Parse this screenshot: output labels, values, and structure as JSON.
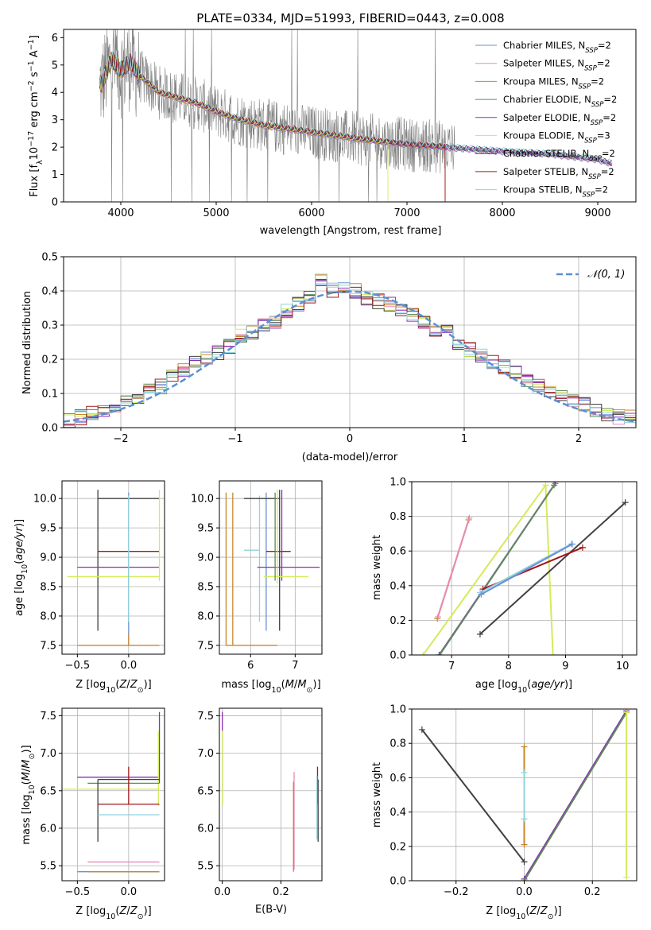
{
  "colors": {
    "Chabrier MILES": "#6b8fd6",
    "Salpeter MILES": "#e88ab8",
    "Kroupa MILES": "#c9862a",
    "Chabrier ELODIE": "#5e8a5e",
    "Salpeter ELODIE": "#8a2fb8",
    "Kroupa ELODIE": "#d6ea5a",
    "Chabrier STELIB": "#404040",
    "Salpeter STELIB": "#a01818",
    "Kroupa STELIB": "#8fd3dd",
    "data": "#7f7f7f",
    "normal": "#5b8fd6",
    "orange": "#e8773a",
    "grid": "#b0b0b0"
  },
  "chart_data": [
    {
      "id": "spectrum",
      "type": "line",
      "title": "PLATE=0334, MJD=51993, FIBERID=0443, z=0.008",
      "xlabel": "wavelength [Angstrom, rest frame]",
      "ylabel": "Flux [f_λ 10^-17 erg cm^-2 s^-1 A^-1]",
      "xlim": [
        3400,
        9400
      ],
      "ylim": [
        0,
        6.3
      ],
      "xticks": [
        4000,
        5000,
        6000,
        7000,
        8000,
        9000
      ],
      "yticks": [
        0,
        1,
        2,
        3,
        4,
        5,
        6
      ],
      "grid": false,
      "legend": "top-right",
      "legend_entries": [
        [
          "Chabrier MILES, N",
          "SSP",
          "=2"
        ],
        [
          "Salpeter MILES, N",
          "SSP",
          "=2"
        ],
        [
          "Kroupa MILES, N",
          "SSP",
          "=2"
        ],
        [
          "Chabrier ELODIE, N",
          "SSP",
          "=2"
        ],
        [
          "Salpeter ELODIE, N",
          "SSP",
          "=2"
        ],
        [
          "Kroupa ELODIE, N",
          "SSP",
          "=3"
        ],
        [
          "Chabrier STELIB, N",
          "SSP",
          "=2"
        ],
        [
          "Salpeter STELIB, N",
          "SSP",
          "=2"
        ],
        [
          "Kroupa STELIB, N",
          "SSP",
          "=2"
        ]
      ],
      "model_continuum": {
        "x": [
          3800,
          3900,
          4000,
          4100,
          4200,
          4400,
          4600,
          4800,
          5000,
          5200,
          5500,
          6000,
          6500,
          7000,
          7400,
          8000,
          8500,
          9000,
          9150
        ],
        "y": [
          4.3,
          5.2,
          4.8,
          5.1,
          4.6,
          4.0,
          3.8,
          3.6,
          3.3,
          3.05,
          2.8,
          2.55,
          2.3,
          2.1,
          2.0,
          1.85,
          1.75,
          1.55,
          1.4
        ]
      },
      "model_cutoffs": {
        "Kroupa ELODIE": 6800,
        "Salpeter STELIB": 7400,
        "Kroupa MILES": 7400
      }
    },
    {
      "id": "residuals",
      "type": "line",
      "xlabel": "(data-model)/error",
      "ylabel": "Normed distribution",
      "xlim": [
        -2.5,
        2.5
      ],
      "ylim": [
        0,
        0.5
      ],
      "xticks": [
        -2,
        -1,
        0,
        1,
        2
      ],
      "yticks": [
        0.0,
        0.1,
        0.2,
        0.3,
        0.4,
        0.5
      ],
      "grid": true,
      "legend": "top-right",
      "legend_label": "𝒩(0, 1)",
      "bin_centers": [
        -2.45,
        -2.35,
        -2.25,
        -2.15,
        -2.05,
        -1.95,
        -1.85,
        -1.75,
        -1.65,
        -1.55,
        -1.45,
        -1.35,
        -1.25,
        -1.15,
        -1.05,
        -0.95,
        -0.85,
        -0.75,
        -0.65,
        -0.55,
        -0.45,
        -0.35,
        -0.25,
        -0.15,
        -0.05,
        0.05,
        0.15,
        0.25,
        0.35,
        0.45,
        0.55,
        0.65,
        0.75,
        0.85,
        0.95,
        1.05,
        1.15,
        1.25,
        1.35,
        1.45,
        1.55,
        1.65,
        1.75,
        1.85,
        1.95,
        2.05,
        2.15,
        2.25,
        2.35,
        2.45
      ],
      "hist_values": [
        0.02,
        0.03,
        0.04,
        0.05,
        0.06,
        0.08,
        0.09,
        0.11,
        0.12,
        0.15,
        0.17,
        0.19,
        0.2,
        0.22,
        0.24,
        0.27,
        0.28,
        0.3,
        0.31,
        0.34,
        0.36,
        0.38,
        0.43,
        0.4,
        0.41,
        0.4,
        0.38,
        0.37,
        0.36,
        0.35,
        0.33,
        0.31,
        0.29,
        0.28,
        0.25,
        0.23,
        0.21,
        0.19,
        0.18,
        0.16,
        0.14,
        0.12,
        0.1,
        0.09,
        0.08,
        0.07,
        0.05,
        0.04,
        0.03,
        0.03
      ]
    },
    {
      "id": "age_vs_Z",
      "type": "scatter",
      "xlabel": "Z [log10(Z/Z⊙)]",
      "ylabel": "age [log10(age/yr)]",
      "xlim": [
        -0.65,
        0.35
      ],
      "ylim": [
        7.35,
        10.3
      ],
      "xticks": [
        -0.5,
        0.0
      ],
      "yticks": [
        7.5,
        8.0,
        8.5,
        9.0,
        9.5,
        10.0
      ],
      "grid": true,
      "segments": [
        {
          "model": "Chabrier STELIB",
          "axis": "h",
          "at": 10.0,
          "from": -0.3,
          "to": 0.3
        },
        {
          "model": "Chabrier STELIB",
          "axis": "v",
          "at": -0.3,
          "from": 7.75,
          "to": 10.15
        },
        {
          "model": "Salpeter STELIB",
          "axis": "h",
          "at": 9.1,
          "from": -0.3,
          "to": 0.3
        },
        {
          "model": "Salpeter ELODIE",
          "axis": "h",
          "at": 8.83,
          "from": -0.5,
          "to": 0.3
        },
        {
          "model": "Kroupa ELODIE",
          "axis": "h",
          "at": 8.67,
          "from": -0.6,
          "to": 0.3
        },
        {
          "model": "Kroupa ELODIE",
          "axis": "v",
          "at": 0.3,
          "from": 8.6,
          "to": 10.15
        },
        {
          "model": "Chabrier MILES",
          "axis": "v",
          "at": 0.0,
          "from": 7.5,
          "to": 10.1
        },
        {
          "model": "Kroupa STELIB",
          "axis": "v",
          "at": 0.0,
          "from": 7.9,
          "to": 10.05
        },
        {
          "model": "Kroupa MILES",
          "axis": "h",
          "at": 7.5,
          "from": -0.5,
          "to": 0.3
        },
        {
          "model": "Kroupa MILES",
          "axis": "v",
          "at": 0.0,
          "from": 7.5,
          "to": 7.7
        }
      ]
    },
    {
      "id": "age_vs_mass",
      "type": "scatter",
      "xlabel": "mass [log10(M/M⊙)]",
      "ylabel": "",
      "xlim": [
        5.3,
        7.6
      ],
      "ylim": [
        7.35,
        10.3
      ],
      "xticks": [
        6,
        7
      ],
      "yticks": [
        7.5,
        8.0,
        8.5,
        9.0,
        9.5,
        10.0
      ],
      "grid": true,
      "segments": [
        {
          "model": "Kroupa MILES",
          "axis": "v",
          "at": 5.45,
          "from": 7.5,
          "to": 10.1
        },
        {
          "model": "Kroupa MILES",
          "axis": "h",
          "at": 7.5,
          "from": 5.45,
          "to": 6.6
        },
        {
          "model": "Kroupa MILES",
          "axis": "v",
          "at": 5.6,
          "from": 7.5,
          "to": 10.1
        },
        {
          "model": "Kroupa STELIB",
          "axis": "v",
          "at": 6.2,
          "from": 7.9,
          "to": 10.05
        },
        {
          "model": "Kroupa STELIB",
          "axis": "h",
          "at": 9.12,
          "from": 5.85,
          "to": 6.2
        },
        {
          "model": "Chabrier MILES",
          "axis": "v",
          "at": 6.35,
          "from": 7.75,
          "to": 10.1
        },
        {
          "model": "Chabrier STELIB",
          "axis": "h",
          "at": 10.0,
          "from": 5.85,
          "to": 6.65
        },
        {
          "model": "Chabrier STELIB",
          "axis": "v",
          "at": 6.65,
          "from": 7.75,
          "to": 10.15
        },
        {
          "model": "Salpeter STELIB",
          "axis": "h",
          "at": 9.1,
          "from": 6.35,
          "to": 6.9
        },
        {
          "model": "Salpeter ELODIE",
          "axis": "h",
          "at": 8.83,
          "from": 6.15,
          "to": 7.55
        },
        {
          "model": "Salpeter ELODIE",
          "axis": "v",
          "at": 6.7,
          "from": 8.6,
          "to": 10.15
        },
        {
          "model": "Kroupa ELODIE",
          "axis": "h",
          "at": 8.67,
          "from": 6.3,
          "to": 7.3
        },
        {
          "model": "Kroupa ELODIE",
          "axis": "v",
          "at": 6.6,
          "from": 8.55,
          "to": 10.15
        },
        {
          "model": "Chabrier ELODIE",
          "axis": "v",
          "at": 6.55,
          "from": 8.6,
          "to": 10.1
        }
      ]
    },
    {
      "id": "massweight_vs_age",
      "type": "line",
      "xlabel": "age [log10(age/yr)]",
      "ylabel": "mass weight",
      "xlim": [
        6.3,
        10.25
      ],
      "ylim": [
        0,
        1.0
      ],
      "xticks": [
        7,
        8,
        9,
        10
      ],
      "yticks": [
        0.0,
        0.2,
        0.4,
        0.6,
        0.8,
        1.0
      ],
      "grid": true,
      "series": [
        {
          "model": "Kroupa MILES",
          "x": [
            6.75,
            7.3
          ],
          "y": [
            0.21,
            0.78
          ]
        },
        {
          "model": "Salpeter MILES",
          "x": [
            6.76,
            7.31
          ],
          "y": [
            0.22,
            0.79
          ]
        },
        {
          "model": "Kroupa ELODIE",
          "x": [
            6.5,
            8.65
          ],
          "y": [
            0.0,
            0.98
          ]
        },
        {
          "model": "Kroupa ELODIE",
          "x": [
            8.65,
            8.78
          ],
          "y": [
            0.98,
            0.0
          ]
        },
        {
          "model": "Salpeter ELODIE",
          "x": [
            6.78,
            8.82
          ],
          "y": [
            0.0,
            0.99
          ]
        },
        {
          "model": "Chabrier ELODIE",
          "x": [
            6.79,
            8.8
          ],
          "y": [
            0.0,
            0.98
          ]
        },
        {
          "model": "Chabrier STELIB",
          "x": [
            7.5,
            10.05
          ],
          "y": [
            0.12,
            0.88
          ]
        },
        {
          "model": "Salpeter STELIB",
          "x": [
            7.55,
            9.3
          ],
          "y": [
            0.38,
            0.62
          ]
        },
        {
          "model": "Kroupa STELIB",
          "x": [
            7.5,
            9.1
          ],
          "y": [
            0.36,
            0.64
          ]
        },
        {
          "model": "Chabrier MILES",
          "x": [
            7.52,
            9.12
          ],
          "y": [
            0.35,
            0.64
          ]
        }
      ]
    },
    {
      "id": "mass_vs_Z",
      "type": "scatter",
      "xlabel": "Z [log10(Z/Z⊙)]",
      "ylabel": "mass [log10(M/M⊙)]",
      "xlim": [
        -0.65,
        0.35
      ],
      "ylim": [
        5.3,
        7.6
      ],
      "xticks": [
        -0.5,
        0.0
      ],
      "yticks": [
        5.5,
        6.0,
        6.5,
        7.0,
        7.5
      ],
      "grid": true,
      "segments": [
        {
          "model": "Salpeter ELODIE",
          "axis": "h",
          "at": 6.68,
          "from": -0.5,
          "to": 0.3
        },
        {
          "model": "Salpeter ELODIE",
          "axis": "v",
          "at": 0.3,
          "from": 6.6,
          "to": 7.55
        },
        {
          "model": "Kroupa ELODIE",
          "axis": "h",
          "at": 6.52,
          "from": -0.65,
          "to": 0.3
        },
        {
          "model": "Kroupa ELODIE",
          "axis": "v",
          "at": 0.29,
          "from": 6.3,
          "to": 7.3
        },
        {
          "model": "Chabrier ELODIE",
          "axis": "h",
          "at": 6.6,
          "from": -0.4,
          "to": 0.3
        },
        {
          "model": "Chabrier STELIB",
          "axis": "h",
          "at": 6.65,
          "from": -0.3,
          "to": 0.3
        },
        {
          "model": "Chabrier STELIB",
          "axis": "v",
          "at": -0.3,
          "from": 5.82,
          "to": 6.65
        },
        {
          "model": "Salpeter STELIB",
          "axis": "h",
          "at": 6.32,
          "from": -0.3,
          "to": 0.3
        },
        {
          "model": "Salpeter STELIB",
          "axis": "v",
          "at": 0.0,
          "from": 6.32,
          "to": 6.82
        },
        {
          "model": "Kroupa STELIB",
          "axis": "h",
          "at": 6.18,
          "from": -0.3,
          "to": 0.3
        },
        {
          "model": "Salpeter MILES",
          "axis": "h",
          "at": 5.55,
          "from": -0.4,
          "to": 0.3
        },
        {
          "model": "Chabrier MILES",
          "axis": "h",
          "at": 5.42,
          "from": -0.5,
          "to": 0.3
        },
        {
          "model": "Kroupa MILES",
          "axis": "h",
          "at": 5.42,
          "from": -0.4,
          "to": 0.3
        }
      ]
    },
    {
      "id": "mass_vs_ebv",
      "type": "scatter",
      "xlabel": "E(B-V)",
      "ylabel": "",
      "xlim": [
        -0.01,
        0.34
      ],
      "ylim": [
        5.3,
        7.6
      ],
      "xticks": [
        0.0,
        0.2
      ],
      "yticks": [
        5.5,
        6.0,
        6.5,
        7.0,
        7.5
      ],
      "grid": true,
      "segments": [
        {
          "model": "Salpeter ELODIE",
          "axis": "v",
          "at": 0.0,
          "from": 7.3,
          "to": 7.55
        },
        {
          "model": "Kroupa ELODIE",
          "axis": "v",
          "at": 0.001,
          "from": 6.3,
          "to": 7.3
        },
        {
          "model": "Salpeter MILES",
          "axis": "v",
          "at": 0.245,
          "from": 5.45,
          "to": 6.75
        },
        {
          "model": "Kroupa MILES",
          "axis": "v",
          "at": 0.243,
          "from": 5.42,
          "to": 6.62
        },
        {
          "model": "Salpeter STELIB",
          "axis": "v",
          "at": 0.325,
          "from": 6.32,
          "to": 6.82
        },
        {
          "model": "Kroupa STELIB",
          "axis": "v",
          "at": 0.323,
          "from": 5.85,
          "to": 6.7
        },
        {
          "model": "Chabrier STELIB",
          "axis": "v",
          "at": 0.327,
          "from": 5.82,
          "to": 6.65
        }
      ]
    },
    {
      "id": "massweight_vs_Z",
      "type": "line",
      "xlabel": "Z [log10(Z/Z⊙)]",
      "ylabel": "mass weight",
      "xlim": [
        -0.33,
        0.33
      ],
      "ylim": [
        0,
        1.0
      ],
      "xticks": [
        -0.2,
        0.0,
        0.2
      ],
      "yticks": [
        0.0,
        0.2,
        0.4,
        0.6,
        0.8,
        1.0
      ],
      "grid": true,
      "series": [
        {
          "model": "Chabrier STELIB",
          "x": [
            -0.3,
            0.0
          ],
          "y": [
            0.88,
            0.11
          ]
        },
        {
          "model": "Kroupa ELODIE",
          "x": [
            0.0,
            0.3
          ],
          "y": [
            0.0,
            0.98
          ]
        },
        {
          "model": "Salpeter ELODIE",
          "x": [
            0.0,
            0.3
          ],
          "y": [
            0.01,
            0.99
          ]
        },
        {
          "model": "Chabrier ELODIE",
          "x": [
            0.0,
            0.3
          ],
          "y": [
            0.0,
            0.98
          ]
        },
        {
          "model": "Kroupa ELODIE",
          "x": [
            0.3,
            0.3
          ],
          "y": [
            0.98,
            0.02
          ]
        },
        {
          "model": "Kroupa MILES",
          "x": [
            0.0,
            0.0
          ],
          "y": [
            0.21,
            0.78
          ]
        },
        {
          "model": "Kroupa STELIB",
          "x": [
            0.0,
            0.0
          ],
          "y": [
            0.36,
            0.63
          ]
        }
      ]
    }
  ]
}
